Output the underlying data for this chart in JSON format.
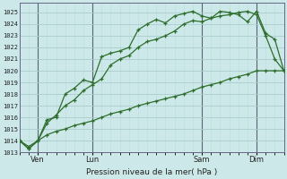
{
  "title": "Pression niveau de la mer( hPa )",
  "bg_color": "#cde8e8",
  "grid_color_major": "#aacccc",
  "grid_color_minor": "#bbdddd",
  "line_color": "#2d6e2d",
  "ylim": [
    1013,
    1025.8
  ],
  "yticks": [
    1013,
    1014,
    1015,
    1016,
    1017,
    1018,
    1019,
    1020,
    1021,
    1022,
    1023,
    1024,
    1025
  ],
  "day_labels": [
    "Ven",
    "Lun",
    "Sam",
    "Dim"
  ],
  "day_positions": [
    2,
    8,
    20,
    26
  ],
  "vline_color": "#556677",
  "total_points": 30,
  "series1_x": [
    0,
    1,
    2,
    3,
    4,
    5,
    6,
    7,
    8,
    9,
    10,
    11,
    12,
    13,
    14,
    15,
    16,
    17,
    18,
    19,
    20,
    21,
    22,
    23,
    24,
    25,
    26,
    27,
    28,
    29
  ],
  "series1_y": [
    1014.0,
    1013.3,
    1014.0,
    1015.8,
    1016.0,
    1018.0,
    1018.5,
    1019.2,
    1019.0,
    1021.2,
    1021.5,
    1021.7,
    1022.0,
    1023.5,
    1024.0,
    1024.4,
    1024.1,
    1024.7,
    1024.9,
    1025.1,
    1024.7,
    1024.5,
    1025.1,
    1025.0,
    1024.8,
    1024.2,
    1025.1,
    1023.2,
    1022.7,
    1020.0
  ],
  "series2_x": [
    0,
    1,
    2,
    3,
    4,
    5,
    6,
    7,
    8,
    9,
    10,
    11,
    12,
    13,
    14,
    15,
    16,
    17,
    18,
    19,
    20,
    21,
    22,
    23,
    24,
    25,
    26,
    27,
    28,
    29
  ],
  "series2_y": [
    1014.0,
    1013.3,
    1014.0,
    1015.5,
    1016.2,
    1017.0,
    1017.5,
    1018.3,
    1018.8,
    1019.3,
    1020.5,
    1021.0,
    1021.3,
    1022.0,
    1022.5,
    1022.7,
    1023.0,
    1023.4,
    1024.0,
    1024.3,
    1024.2,
    1024.5,
    1024.7,
    1024.8,
    1025.0,
    1025.1,
    1024.8,
    1023.0,
    1021.0,
    1020.0
  ],
  "series3_x": [
    0,
    1,
    2,
    3,
    4,
    5,
    6,
    7,
    8,
    9,
    10,
    11,
    12,
    13,
    14,
    15,
    16,
    17,
    18,
    19,
    20,
    21,
    22,
    23,
    24,
    25,
    26,
    27,
    28,
    29
  ],
  "series3_y": [
    1014.0,
    1013.5,
    1014.0,
    1014.5,
    1014.8,
    1015.0,
    1015.3,
    1015.5,
    1015.7,
    1016.0,
    1016.3,
    1016.5,
    1016.7,
    1017.0,
    1017.2,
    1017.4,
    1017.6,
    1017.8,
    1018.0,
    1018.3,
    1018.6,
    1018.8,
    1019.0,
    1019.3,
    1019.5,
    1019.7,
    1020.0,
    1020.0,
    1020.0,
    1020.0
  ]
}
